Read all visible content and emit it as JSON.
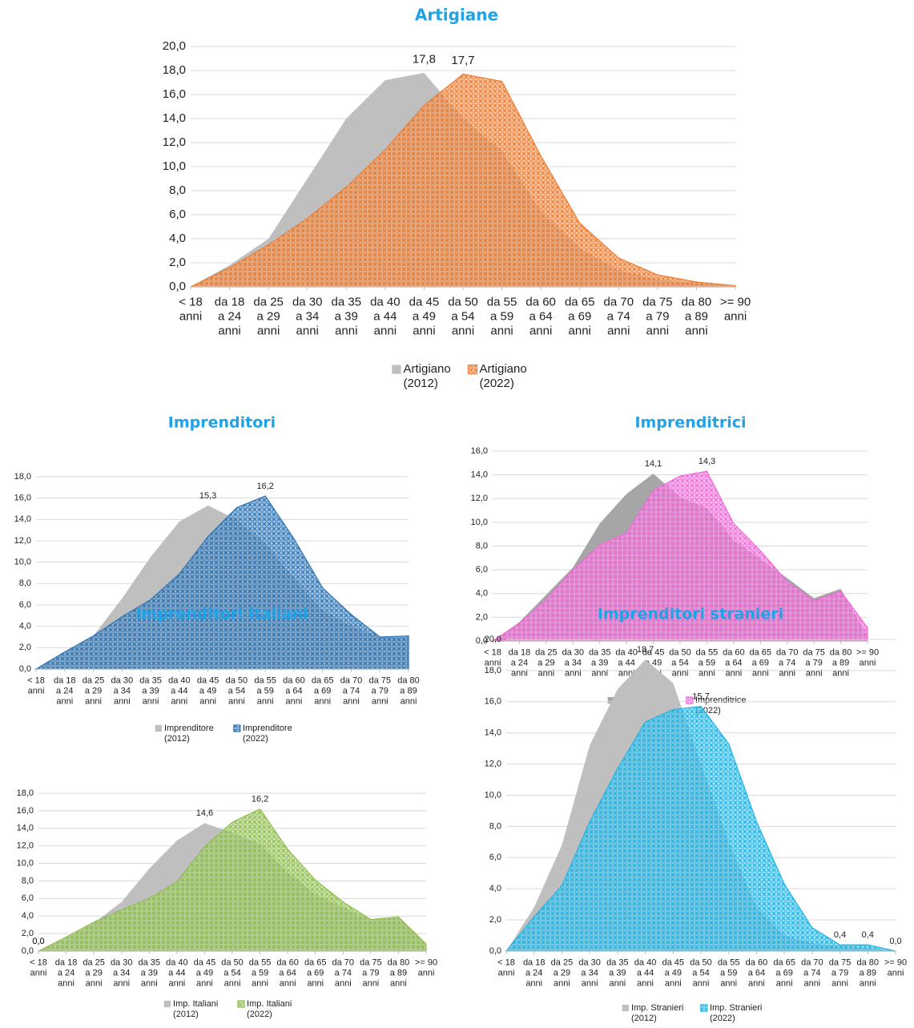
{
  "chart_data": [
    {
      "type": "area",
      "title": "Artigiane",
      "categories": [
        "< 18 anni",
        "da 18 a 24 anni",
        "da 25 a 29 anni",
        "da 30 a 34 anni",
        "da 35 a 39 anni",
        "da 40 a 44 anni",
        "da 45 a 49 anni",
        "da 50 a 54 anni",
        "da 55 a 59 anni",
        "da 60 a 64 anni",
        "da 65 a 69 anni",
        "da 70 a 74 anni",
        "da 75 a 79 anni",
        "da 80 a 89 anni",
        ">= 90 anni"
      ],
      "series": [
        {
          "name": "Artigiano (2012)",
          "color": "#bfbfbf",
          "values": [
            0,
            1.8,
            4.0,
            9.0,
            14.0,
            17.2,
            17.8,
            14.0,
            11.3,
            6.3,
            3.2,
            1.4,
            0.6,
            0.3,
            0.1
          ],
          "value_labels": [
            null,
            null,
            null,
            null,
            null,
            null,
            "17,8",
            null,
            null,
            null,
            null,
            null,
            null,
            null,
            null
          ]
        },
        {
          "name": "Artigiano (2022)",
          "color": "#ed7d31",
          "values": [
            0,
            1.6,
            3.5,
            5.7,
            8.3,
            11.4,
            15.1,
            17.7,
            17.1,
            10.9,
            5.3,
            2.4,
            1.0,
            0.4,
            0.1
          ],
          "value_labels": [
            null,
            null,
            null,
            null,
            null,
            null,
            null,
            "17,7",
            null,
            null,
            null,
            null,
            null,
            null,
            null
          ]
        }
      ],
      "ylim": [
        0,
        20
      ],
      "yticks": [
        {
          "value": 0,
          "label": "0,0"
        },
        {
          "value": 2,
          "label": "2,0"
        },
        {
          "value": 4,
          "label": "4,0"
        },
        {
          "value": 6,
          "label": "6,0"
        },
        {
          "value": 8,
          "label": "8,0"
        },
        {
          "value": 10,
          "label": "10,0"
        },
        {
          "value": 12,
          "label": "12,0"
        },
        {
          "value": 14,
          "label": "14,0"
        },
        {
          "value": 16,
          "label": "16,0"
        },
        {
          "value": 18,
          "label": "18,0"
        },
        {
          "value": 20,
          "label": "20,0"
        }
      ],
      "grid": true
    },
    {
      "type": "area",
      "title": "Imprenditori",
      "categories": [
        "< 18 anni",
        "da 18 a 24 anni",
        "da 25 a 29 anni",
        "da 30 a 34 anni",
        "da 35 a 39 anni",
        "da 40 a 44 anni",
        "da 45 a 49 anni",
        "da 50 a 54 anni",
        "da 55 a 59 anni",
        "da 60 a 64 anni",
        "da 65 a 69 anni",
        "da 70 a 74 anni",
        "da 75 a 79 anni",
        "da 80 a 89 anni"
      ],
      "series": [
        {
          "name": "Imprenditore (2012)",
          "color": "#bfbfbf",
          "values": [
            0,
            1.5,
            3.1,
            6.6,
            10.5,
            13.8,
            15.3,
            14.0,
            11.7,
            8.5,
            5.5,
            4.0,
            3.0,
            3.1
          ],
          "value_labels": [
            null,
            null,
            null,
            null,
            null,
            null,
            "15,3",
            null,
            null,
            null,
            null,
            null,
            null,
            null
          ]
        },
        {
          "name": "Imprenditore (2022)",
          "color": "#2e75b6",
          "values": [
            0,
            1.6,
            3.1,
            4.9,
            6.5,
            8.9,
            12.4,
            15.1,
            16.2,
            12.2,
            7.6,
            5.1,
            3.0,
            3.1
          ],
          "value_labels": [
            null,
            null,
            null,
            null,
            null,
            null,
            null,
            null,
            "16,2",
            null,
            null,
            null,
            null,
            null
          ]
        }
      ],
      "ylim": [
        0,
        18
      ],
      "yticks": [
        {
          "value": 0,
          "label": "0,0"
        },
        {
          "value": 2,
          "label": "2,0"
        },
        {
          "value": 4,
          "label": "4,0"
        },
        {
          "value": 6,
          "label": "6,0"
        },
        {
          "value": 8,
          "label": "8,0"
        },
        {
          "value": 10,
          "label": "10,0"
        },
        {
          "value": 12,
          "label": "12,0"
        },
        {
          "value": 14,
          "label": "14,0"
        },
        {
          "value": 16,
          "label": "16,0"
        },
        {
          "value": 18,
          "label": "18,0"
        }
      ],
      "grid": true
    },
    {
      "type": "area",
      "title": "Imprenditrici",
      "categories": [
        "< 18 anni",
        "da 18 a 24 anni",
        "da 25 a 29 anni",
        "da 30 a 34 anni",
        "da 35 a 39 anni",
        "da 40 a 44 anni",
        "da 45 a 49 anni",
        "da 50 a 54 anni",
        "da 55 a 59 anni",
        "da 60 a 64 anni",
        "da 65 a 69 anni",
        "da 70 a 74 anni",
        "da 75 a 79 anni",
        "da 80 a 89 anni",
        ">= 90 anni"
      ],
      "series": [
        {
          "name": "Imprenditrice (2012)",
          "color": "#a6a6a6",
          "values": [
            0,
            1.6,
            3.9,
            6.2,
            9.9,
            12.4,
            14.1,
            12.1,
            11.2,
            8.5,
            6.9,
            5.3,
            3.6,
            4.4,
            0.4
          ],
          "value_labels": [
            null,
            null,
            null,
            null,
            null,
            null,
            "14,1",
            null,
            null,
            null,
            null,
            null,
            null,
            null,
            null
          ]
        },
        {
          "name": "Imprenditrice (2022)",
          "color": "#f06ad8",
          "values": [
            0,
            1.5,
            3.5,
            6.0,
            8.1,
            9.1,
            12.7,
            13.9,
            14.3,
            9.9,
            7.6,
            5.0,
            3.4,
            4.2,
            1.1
          ],
          "value_labels": [
            null,
            null,
            null,
            null,
            null,
            null,
            null,
            null,
            "14,3",
            null,
            null,
            null,
            null,
            null,
            null
          ]
        }
      ],
      "ylim": [
        0,
        16
      ],
      "yticks": [
        {
          "value": 0,
          "label": "0,0"
        },
        {
          "value": 2,
          "label": "2,0"
        },
        {
          "value": 4,
          "label": "4,0"
        },
        {
          "value": 6,
          "label": "6,0"
        },
        {
          "value": 8,
          "label": "8,0"
        },
        {
          "value": 10,
          "label": "10,0"
        },
        {
          "value": 12,
          "label": "12,0"
        },
        {
          "value": 14,
          "label": "14,0"
        },
        {
          "value": 16,
          "label": "16,0"
        }
      ],
      "grid": true
    },
    {
      "type": "area",
      "title": "Imprenditori italiani",
      "categories": [
        "< 18 anni",
        "da 18 a 24 anni",
        "da 25 a 29 anni",
        "da 30 a 34 anni",
        "da 35 a 39 anni",
        "da 40 a 44 anni",
        "da 45 a 49 anni",
        "da 50 a 54 anni",
        "da 55 a 59 anni",
        "da 60 a 64 anni",
        "da 65 a 69 anni",
        "da 70 a 74 anni",
        "da 75 a 79 anni",
        "da 80 a 89 anni",
        ">= 90 anni"
      ],
      "series": [
        {
          "name": "Imp. Italiani (2012)",
          "color": "#bfbfbf",
          "values": [
            0,
            1.5,
            3.2,
            5.6,
            9.4,
            12.6,
            14.6,
            13.5,
            12.2,
            9.0,
            6.5,
            5.0,
            3.6,
            3.8,
            0.6
          ],
          "value_labels": [
            "0,0",
            null,
            null,
            null,
            null,
            null,
            "14,6",
            null,
            null,
            null,
            null,
            null,
            null,
            null,
            null
          ]
        },
        {
          "name": "Imp. Italiani (2022)",
          "color": "#8fbf4e",
          "values": [
            0,
            1.6,
            3.3,
            4.7,
            6.0,
            7.9,
            11.9,
            14.7,
            16.2,
            11.6,
            8.1,
            5.6,
            3.6,
            3.9,
            0.8
          ],
          "value_labels": [
            "0,0",
            null,
            null,
            null,
            null,
            null,
            null,
            null,
            "16,2",
            null,
            null,
            null,
            null,
            null,
            null
          ]
        }
      ],
      "ylim": [
        0,
        18
      ],
      "yticks": [
        {
          "value": 0,
          "label": "0,0"
        },
        {
          "value": 2,
          "label": "2,0"
        },
        {
          "value": 4,
          "label": "4,0"
        },
        {
          "value": 6,
          "label": "6,0"
        },
        {
          "value": 8,
          "label": "8,0"
        },
        {
          "value": 10,
          "label": "10,0"
        },
        {
          "value": 12,
          "label": "12,0"
        },
        {
          "value": 14,
          "label": "14,0"
        },
        {
          "value": 16,
          "label": "16,0"
        },
        {
          "value": 18,
          "label": "18,0"
        }
      ],
      "grid": true
    },
    {
      "type": "area",
      "title": "Imprenditori stranieri",
      "categories": [
        "< 18 anni",
        "da 18 a 24 anni",
        "da 25 a 29 anni",
        "da 30 a 34 anni",
        "da 35 a 39 anni",
        "da 40 a 44 anni",
        "da 45 a 49 anni",
        "da 50 a 54 anni",
        "da 55 a 59 anni",
        "da 60 a 64 anni",
        "da 65 a 69 anni",
        "da 70 a 74 anni",
        "da 75 a 79 anni",
        "da 80 a 89 anni",
        ">= 90 anni"
      ],
      "series": [
        {
          "name": "Imp. Stranieri (2012)",
          "color": "#bfbfbf",
          "values": [
            0,
            2.8,
            6.8,
            13.2,
            16.8,
            18.7,
            17.2,
            12.0,
            7.0,
            2.8,
            1.0,
            0.5,
            0.3,
            0.2,
            0
          ],
          "value_labels": [
            null,
            null,
            null,
            null,
            null,
            "18,7",
            null,
            null,
            null,
            null,
            null,
            null,
            null,
            null,
            null
          ]
        },
        {
          "name": "Imp. Stranieri (2022)",
          "color": "#1fb6e6",
          "values": [
            0,
            2.2,
            4.2,
            8.3,
            11.7,
            14.7,
            15.5,
            15.7,
            13.3,
            8.3,
            4.3,
            1.5,
            0.4,
            0.4,
            0
          ],
          "value_labels": [
            null,
            null,
            null,
            null,
            null,
            null,
            null,
            "15,7",
            null,
            null,
            null,
            null,
            "0,4",
            "0,4",
            "0,0"
          ]
        }
      ],
      "ylim": [
        0,
        20
      ],
      "yticks": [
        {
          "value": 0,
          "label": "0,0"
        },
        {
          "value": 2,
          "label": "2,0"
        },
        {
          "value": 4,
          "label": "4,0"
        },
        {
          "value": 6,
          "label": "6,0"
        },
        {
          "value": 8,
          "label": "8,0"
        },
        {
          "value": 10,
          "label": "10,0"
        },
        {
          "value": 12,
          "label": "12,0"
        },
        {
          "value": 14,
          "label": "14,0"
        },
        {
          "value": 16,
          "label": "16,0"
        },
        {
          "value": 18,
          "label": "18,0"
        },
        {
          "value": 20,
          "label": "20,0"
        }
      ],
      "grid": true
    }
  ]
}
